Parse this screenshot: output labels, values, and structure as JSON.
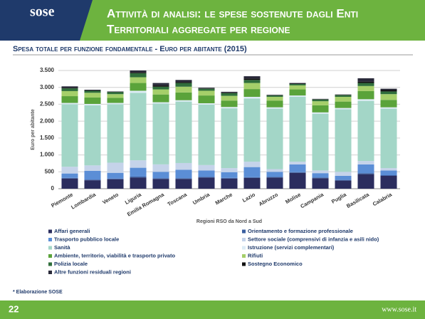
{
  "header": {
    "logo": "sose",
    "title": [
      "Attività di analisi: le spese sostenute dagli Enti",
      "Territoriali aggregate per regione"
    ]
  },
  "chart_data": {
    "type": "stacked-bar",
    "title": "Spesa totale per funzione fondamentale - Euro per abitante (2015)",
    "y_label": "Euro per abitante",
    "x_label": "Regioni RSO da Nord a Sud",
    "categories": [
      "Piemonte",
      "Lombardia",
      "Veneto",
      "Liguria",
      "Emilia Romagna",
      "Toscana",
      "Umbria",
      "Marche",
      "Lazio",
      "Abruzzo",
      "Molise",
      "Campania",
      "Puglia",
      "Basilicata",
      "Calabria"
    ],
    "series": [
      {
        "name": "Affari generali",
        "color": "#2b2d5e",
        "values": [
          300,
          250,
          280,
          330,
          290,
          290,
          330,
          300,
          320,
          330,
          470,
          310,
          240,
          430,
          380
        ]
      },
      {
        "name": "Orientamento e formazione professionale",
        "color": "#3b5fa0",
        "values": [
          20,
          20,
          20,
          30,
          20,
          20,
          20,
          20,
          20,
          20,
          20,
          20,
          20,
          30,
          20
        ]
      },
      {
        "name": "Trasporto pubblico locale",
        "color": "#5b8ed6",
        "values": [
          130,
          260,
          170,
          260,
          190,
          250,
          190,
          170,
          300,
          150,
          230,
          130,
          120,
          260,
          140
        ]
      },
      {
        "name": "Settore sociale (comprensivi di infanzia e asili nido)",
        "color": "#c5d3ea",
        "values": [
          200,
          160,
          300,
          220,
          220,
          200,
          160,
          120,
          160,
          80,
          80,
          80,
          120,
          100,
          70
        ]
      },
      {
        "name": "Sanità",
        "color": "#a3d6c7",
        "values": [
          1850,
          1780,
          1730,
          2000,
          1800,
          1820,
          1790,
          1770,
          1870,
          1790,
          1920,
          1680,
          1850,
          1780,
          1760
        ]
      },
      {
        "name": "Istruzione (servizi complementari)",
        "color": "#dcebf5",
        "values": [
          40,
          40,
          40,
          60,
          40,
          40,
          40,
          40,
          50,
          40,
          40,
          40,
          40,
          50,
          40
        ]
      },
      {
        "name": "Ambiente, territorio, viabilità e trasporto privato",
        "color": "#5aa33a",
        "values": [
          200,
          190,
          150,
          230,
          230,
          230,
          230,
          190,
          230,
          200,
          180,
          210,
          190,
          240,
          220
        ]
      },
      {
        "name": "Rifiuti",
        "color": "#a5cf6a",
        "values": [
          150,
          140,
          110,
          170,
          150,
          170,
          140,
          140,
          180,
          110,
          120,
          120,
          140,
          150,
          170
        ]
      },
      {
        "name": "Polizia locale",
        "color": "#2f6e3b",
        "values": [
          80,
          60,
          60,
          120,
          80,
          110,
          60,
          80,
          90,
          40,
          40,
          50,
          50,
          90,
          80
        ]
      },
      {
        "name": "Sostegno Economico",
        "color": "#111111",
        "values": [
          20,
          10,
          10,
          30,
          40,
          30,
          10,
          20,
          40,
          10,
          10,
          10,
          10,
          40,
          40
        ]
      },
      {
        "name": "Altre funzioni residuali regioni",
        "color": "#2a2a3a",
        "values": [
          40,
          20,
          10,
          50,
          70,
          60,
          20,
          20,
          70,
          10,
          20,
          10,
          10,
          100,
          40
        ]
      }
    ],
    "ylim": [
      0,
      3500
    ],
    "yticks": [
      0,
      500,
      {
        "value": 1000,
        "label": "1.000"
      },
      {
        "value": 1500,
        "label": "1.500"
      },
      {
        "value": 2000,
        "label": "2.000"
      },
      {
        "value": 2500,
        "label": "2.500"
      },
      {
        "value": 3000,
        "label": "3.000"
      },
      {
        "value": 3500,
        "label": "3.500"
      }
    ],
    "grid": true
  },
  "footer": {
    "note": "* Elaborazione SOSE",
    "page": "22",
    "url": "www.sose.it"
  }
}
